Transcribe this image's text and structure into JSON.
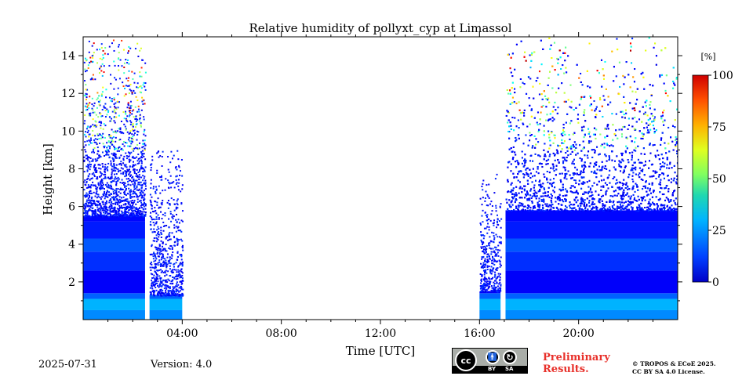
{
  "chart_data": {
    "type": "heatmap",
    "title": "Relative humidity of pollyxt_cyp at Limassol",
    "xlabel": "Time [UTC]",
    "ylabel": "Height [km]",
    "xlim_hours": [
      0,
      24
    ],
    "ylim_km": [
      0,
      15
    ],
    "x_ticks": [
      {
        "hour": 4,
        "label": "04:00"
      },
      {
        "hour": 8,
        "label": "08:00"
      },
      {
        "hour": 12,
        "label": "12:00"
      },
      {
        "hour": 16,
        "label": "16:00"
      },
      {
        "hour": 20,
        "label": "20:00"
      }
    ],
    "y_ticks": [
      {
        "km": 2,
        "label": "2"
      },
      {
        "km": 4,
        "label": "4"
      },
      {
        "km": 6,
        "label": "6"
      },
      {
        "km": 8,
        "label": "8"
      },
      {
        "km": 10,
        "label": "10"
      },
      {
        "km": 12,
        "label": "12"
      },
      {
        "km": 14,
        "label": "14"
      }
    ],
    "colorbar": {
      "unit": "[%]",
      "range": [
        0,
        100
      ],
      "ticks": [
        {
          "value": 0,
          "label": "0"
        },
        {
          "value": 25,
          "label": "25"
        },
        {
          "value": 50,
          "label": "50"
        },
        {
          "value": 75,
          "label": "75"
        },
        {
          "value": 100,
          "label": "100"
        }
      ],
      "colormap": "jet"
    },
    "data_segments": [
      {
        "start_hour": 0.0,
        "end_hour": 2.5,
        "top_km": 15.0,
        "dense_top_km": 5.5
      },
      {
        "start_hour": 2.68,
        "end_hour": 4.0,
        "top_km": 9.0,
        "dense_top_km": 1.3
      },
      {
        "start_hour": 16.0,
        "end_hour": 16.85,
        "top_km": 8.0,
        "dense_top_km": 1.5
      },
      {
        "start_hour": 17.05,
        "end_hour": 24.0,
        "top_km": 15.0,
        "dense_top_km": 5.8
      }
    ],
    "colors": {
      "boundary_layer": "#1a8fd6",
      "mid_layer": "#0a5ee0",
      "free_troposphere": "#0040ff"
    }
  },
  "footer": {
    "date": "2025-07-31",
    "version": "Version: 4.0",
    "preliminary_line1": "Preliminary",
    "preliminary_line2": "Results.",
    "copyright_line1": "© TROPOS & ECoE 2025.",
    "copyright_line2": "CC BY SA 4.0 License.",
    "license_badge": {
      "cc": "cc",
      "by": "BY",
      "sa": "SA"
    }
  }
}
